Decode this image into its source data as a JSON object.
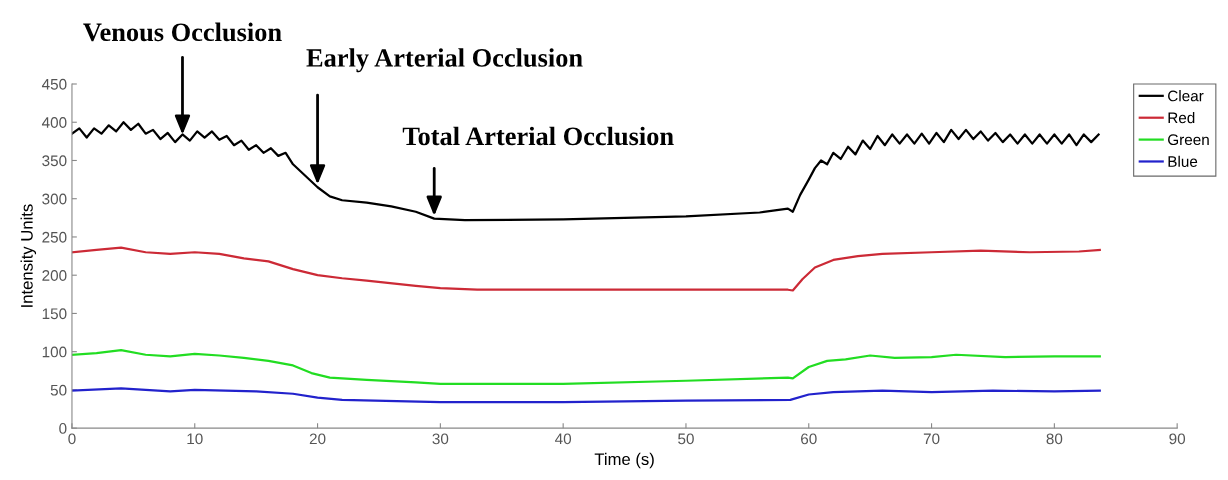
{
  "chart_data": {
    "type": "line",
    "xlabel": "Time (s)",
    "ylabel": "Intensity Units",
    "xlim": [
      0,
      90
    ],
    "ylim": [
      0,
      450
    ],
    "xticks": [
      0,
      10,
      20,
      30,
      40,
      50,
      60,
      70,
      80,
      90
    ],
    "yticks": [
      0,
      50,
      100,
      150,
      200,
      250,
      300,
      350,
      400,
      450
    ],
    "grid": false,
    "legend": "top right",
    "line_style": "solid",
    "marker": "none",
    "annotations": [
      {
        "text": "Venous Occlusion",
        "x": 9,
        "y": 380
      },
      {
        "text": "Early Arterial Occlusion",
        "x": 20,
        "y": 315
      },
      {
        "text": "Total Arterial Occlusion",
        "x": 29.5,
        "y": 274
      }
    ],
    "series": [
      {
        "name": "Clear",
        "color": "#000000",
        "x": [
          0,
          0.6,
          1.2,
          1.8,
          2.4,
          3.0,
          3.6,
          4.2,
          4.8,
          5.4,
          6,
          6.6,
          7.2,
          7.8,
          8.4,
          9,
          9.6,
          10.2,
          10.8,
          11.4,
          12,
          12.6,
          13.2,
          13.8,
          14.4,
          15,
          15.6,
          16.2,
          16.8,
          17.4,
          18,
          19,
          20,
          21,
          22,
          24,
          26,
          28,
          29.5,
          32,
          40,
          50,
          56,
          58.3,
          58.7,
          59.3,
          60,
          60.5,
          61,
          61.5,
          62,
          62.6,
          63.2,
          63.8,
          64.4,
          65,
          65.6,
          66.2,
          66.8,
          67.4,
          68,
          68.6,
          69.2,
          69.8,
          70.4,
          71,
          71.6,
          72.2,
          72.8,
          73.4,
          74,
          74.6,
          75.2,
          75.8,
          76.4,
          77,
          77.6,
          78.2,
          78.8,
          79.4,
          80,
          80.6,
          81.2,
          81.8,
          82.4,
          83,
          83.6
        ],
        "values": [
          385,
          392,
          380,
          392,
          385,
          396,
          388,
          400,
          390,
          398,
          385,
          390,
          378,
          386,
          374,
          384,
          376,
          388,
          380,
          388,
          377,
          382,
          370,
          376,
          364,
          370,
          360,
          366,
          356,
          360,
          345,
          330,
          315,
          303,
          298,
          295,
          290,
          283,
          274,
          272,
          273,
          277,
          282,
          287,
          283,
          305,
          325,
          340,
          350,
          345,
          360,
          352,
          368,
          358,
          376,
          365,
          382,
          370,
          384,
          372,
          384,
          372,
          385,
          372,
          386,
          374,
          390,
          378,
          390,
          378,
          388,
          376,
          386,
          374,
          384,
          372,
          384,
          372,
          384,
          372,
          384,
          372,
          384,
          370,
          384,
          374,
          384
        ]
      },
      {
        "name": "Red",
        "color": "#cc2a36",
        "x": [
          0,
          2,
          4,
          6,
          8,
          10,
          12,
          14,
          16,
          18,
          20,
          22,
          24,
          28,
          30,
          33,
          40,
          50,
          58.3,
          58.7,
          59.5,
          60.5,
          62,
          64,
          66,
          70,
          74,
          78,
          82,
          83.7
        ],
        "values": [
          230,
          233,
          236,
          230,
          228,
          230,
          228,
          222,
          218,
          208,
          200,
          196,
          193,
          186,
          183,
          181,
          181,
          181,
          181,
          180,
          195,
          210,
          220,
          225,
          228,
          230,
          232,
          230,
          231,
          233
        ]
      },
      {
        "name": "Green",
        "color": "#22dd22",
        "x": [
          0,
          2,
          4,
          6,
          8,
          10,
          12,
          14,
          16,
          18,
          19.5,
          21,
          24,
          28,
          30,
          40,
          50,
          58.3,
          58.7,
          60,
          61.5,
          63,
          65,
          67,
          70,
          72,
          76,
          80,
          83.7
        ],
        "values": [
          96,
          98,
          102,
          96,
          94,
          97,
          95,
          92,
          88,
          82,
          72,
          66,
          63,
          60,
          58,
          58,
          62,
          66,
          65,
          80,
          88,
          90,
          95,
          92,
          93,
          96,
          93,
          94,
          94
        ]
      },
      {
        "name": "Blue",
        "color": "#2222cc",
        "x": [
          0,
          4,
          8,
          10,
          15,
          18,
          20,
          22,
          30,
          40,
          50,
          58.5,
          60,
          62,
          66,
          70,
          75,
          80,
          83.7
        ],
        "values": [
          49,
          52,
          48,
          50,
          48,
          45,
          40,
          37,
          34,
          34,
          36,
          37,
          44,
          47,
          49,
          47,
          49,
          48,
          49
        ]
      }
    ]
  }
}
